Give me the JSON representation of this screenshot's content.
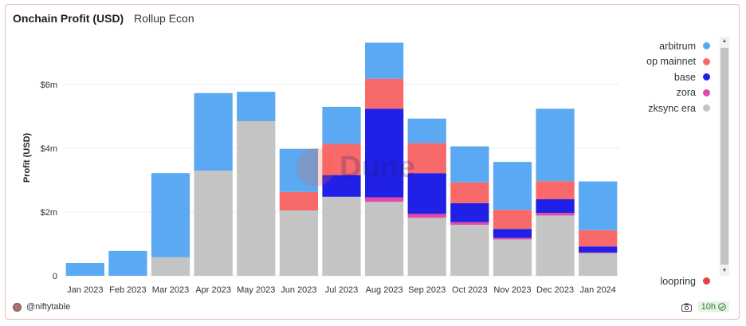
{
  "header": {
    "title": "Onchain Profit (USD)",
    "subtitle": "Rollup Econ"
  },
  "legend": {
    "items": [
      {
        "name": "arbitrum",
        "color": "#5aa9f2"
      },
      {
        "name": "op mainnet",
        "color": "#f86a6a"
      },
      {
        "name": "base",
        "color": "#2020e6"
      },
      {
        "name": "zora",
        "color": "#e34aa8"
      },
      {
        "name": "zksync era",
        "color": "#c4c4c4"
      }
    ],
    "bottom_item": {
      "name": "loopring",
      "color": "#e2473f"
    }
  },
  "footer": {
    "author": "@niftytable",
    "freshness": "10h"
  },
  "watermark": {
    "text": "Dune"
  },
  "icons": {
    "camera": "camera-icon",
    "check": "check-circle-icon",
    "avatar": "user-avatar"
  },
  "chart_data": {
    "type": "bar",
    "stacked": true,
    "ylabel": "Profit (USD)",
    "xlabel": "",
    "ylim": [
      0,
      7.5
    ],
    "yticks": [
      0,
      2,
      4,
      6
    ],
    "ytick_labels": [
      "0",
      "$2m",
      "$4m",
      "$6m"
    ],
    "grid": true,
    "categories": [
      "Jan 2023",
      "Feb 2023",
      "Mar 2023",
      "Apr 2023",
      "May 2023",
      "Jun 2023",
      "Jul 2023",
      "Aug 2023",
      "Sep 2023",
      "Oct 2023",
      "Nov 2023",
      "Dec 2023",
      "Jan 2024"
    ],
    "series": [
      {
        "name": "zksync era",
        "color": "#c4c4c4",
        "values": [
          0,
          0,
          0.58,
          3.3,
          4.85,
          2.05,
          2.48,
          2.32,
          1.82,
          1.6,
          1.14,
          1.89,
          0.71
        ]
      },
      {
        "name": "zora",
        "color": "#e34aa8",
        "values": [
          0,
          0,
          0,
          0,
          0,
          0,
          0,
          0.14,
          0.12,
          0.08,
          0.05,
          0.08,
          0.02
        ]
      },
      {
        "name": "base",
        "color": "#2020e6",
        "values": [
          0,
          0,
          0,
          0,
          0,
          0,
          0.68,
          2.78,
          1.28,
          0.6,
          0.28,
          0.43,
          0.19
        ]
      },
      {
        "name": "op mainnet",
        "color": "#f86a6a",
        "values": [
          0,
          0,
          0,
          0,
          0,
          0.58,
          0.98,
          0.94,
          0.94,
          0.65,
          0.6,
          0.57,
          0.51
        ]
      },
      {
        "name": "arbitrum",
        "color": "#5aa9f2",
        "values": [
          0.4,
          0.78,
          2.64,
          2.43,
          0.92,
          1.35,
          1.16,
          1.13,
          0.77,
          1.13,
          1.5,
          2.27,
          1.53
        ]
      },
      {
        "name": "loopring",
        "color": "#e2473f",
        "values": [
          0,
          0,
          0,
          0,
          0,
          0,
          0,
          0,
          0,
          0,
          0,
          0,
          0
        ]
      }
    ]
  }
}
